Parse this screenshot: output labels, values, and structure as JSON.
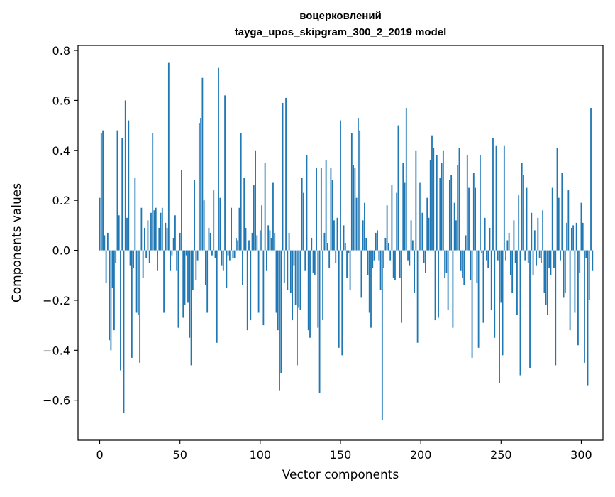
{
  "chart_data": {
    "type": "bar",
    "title": "воцерковлений",
    "subtitle": "tayga_upos_skipgram_300_2_2019 model",
    "xlabel": "Vector components",
    "ylabel": "Components values",
    "xlim": [
      -13.5,
      313.5
    ],
    "ylim": [
      -0.76,
      0.82
    ],
    "xticks": [
      0,
      50,
      100,
      150,
      200,
      250,
      300
    ],
    "xtick_labels": [
      "0",
      "50",
      "100",
      "150",
      "200",
      "250",
      "300"
    ],
    "yticks": [
      -0.6,
      -0.4,
      -0.2,
      0.0,
      0.2,
      0.4,
      0.6,
      0.8
    ],
    "ytick_labels": [
      "−0.6",
      "−0.4",
      "−0.2",
      "0.0",
      "0.2",
      "0.4",
      "0.6",
      "0.8"
    ],
    "grid": false,
    "bar_color": "#1f77b4",
    "series": [
      {
        "values": [
          0.21,
          0.47,
          0.48,
          0.06,
          -0.13,
          0.07,
          -0.36,
          -0.4,
          -0.15,
          -0.32,
          -0.05,
          0.48,
          0.14,
          -0.48,
          0.45,
          -0.65,
          0.6,
          0.13,
          0.52,
          -0.06,
          -0.43,
          -0.07,
          0.29,
          -0.25,
          -0.26,
          -0.45,
          0.17,
          -0.11,
          0.09,
          -0.03,
          0.12,
          -0.05,
          0.15,
          0.47,
          0.16,
          0.17,
          -0.08,
          0.09,
          0.15,
          0.17,
          -0.25,
          0.11,
          0.09,
          0.75,
          -0.08,
          -0.02,
          0.05,
          0.14,
          -0.08,
          -0.31,
          0.07,
          0.32,
          -0.27,
          -0.22,
          -0.02,
          -0.21,
          -0.35,
          -0.46,
          -0.16,
          0.28,
          -0.12,
          -0.04,
          0.51,
          0.53,
          0.69,
          0.2,
          -0.14,
          -0.25,
          0.09,
          0.07,
          -0.02,
          0.24,
          -0.03,
          -0.37,
          0.73,
          0.21,
          -0.06,
          -0.08,
          0.62,
          -0.15,
          -0.02,
          -0.04,
          0.17,
          -0.03,
          -0.03,
          0.05,
          0.04,
          0.17,
          0.47,
          -0.14,
          0.29,
          0.09,
          -0.32,
          0.04,
          -0.28,
          0.07,
          0.26,
          0.4,
          0.06,
          -0.25,
          0.08,
          0.18,
          -0.3,
          0.35,
          -0.08,
          0.1,
          0.08,
          0.05,
          0.27,
          0.07,
          -0.25,
          -0.32,
          -0.56,
          -0.49,
          0.59,
          -0.13,
          0.61,
          -0.16,
          0.07,
          -0.17,
          -0.28,
          -0.06,
          -0.22,
          -0.46,
          -0.23,
          -0.24,
          0.29,
          0.23,
          -0.08,
          0.38,
          -0.32,
          -0.35,
          0.05,
          -0.09,
          -0.1,
          0.33,
          -0.31,
          -0.57,
          0.33,
          -0.28,
          0.07,
          0.36,
          0.03,
          -0.07,
          0.33,
          0.28,
          0.12,
          -0.05,
          0.13,
          -0.39,
          0.52,
          -0.42,
          0.1,
          0.03,
          -0.11,
          -0.01,
          -0.16,
          0.47,
          0.34,
          0.33,
          0.21,
          0.53,
          0.48,
          -0.19,
          0.12,
          0.19,
          0.05,
          -0.1,
          -0.25,
          -0.31,
          -0.07,
          -0.04,
          0.07,
          0.08,
          -0.04,
          -0.16,
          -0.68,
          -0.07,
          0.05,
          0.18,
          0.03,
          -0.04,
          0.26,
          -0.11,
          -0.12,
          0.23,
          0.5,
          -0.11,
          -0.29,
          0.35,
          0.27,
          0.57,
          -0.04,
          -0.06,
          0.12,
          0.04,
          -0.17,
          0.4,
          -0.37,
          0.27,
          0.27,
          0.15,
          -0.05,
          -0.09,
          0.21,
          0.13,
          0.36,
          0.46,
          0.41,
          -0.28,
          0.38,
          -0.27,
          0.29,
          0.35,
          0.4,
          -0.11,
          -0.09,
          -0.24,
          0.28,
          0.3,
          -0.31,
          0.19,
          0.12,
          0.34,
          0.41,
          -0.08,
          -0.11,
          -0.14,
          0.06,
          0.38,
          0.25,
          -0.12,
          -0.43,
          0.31,
          0.25,
          -0.13,
          -0.39,
          0.38,
          -0.01,
          -0.29,
          0.13,
          -0.04,
          -0.07,
          0.09,
          -0.24,
          0.45,
          -0.35,
          0.42,
          -0.04,
          -0.53,
          -0.21,
          -0.42,
          0.42,
          -0.04,
          0.04,
          0.07,
          -0.1,
          -0.17,
          0.12,
          -0.05,
          -0.26,
          0.22,
          -0.5,
          0.35,
          0.3,
          -0.04,
          0.25,
          -0.05,
          -0.47,
          0.15,
          -0.1,
          0.08,
          -0.06,
          0.13,
          -0.03,
          -0.05,
          0.16,
          -0.17,
          -0.22,
          -0.26,
          -0.07,
          -0.1,
          0.25,
          -0.07,
          -0.46,
          0.41,
          0.21,
          -0.04,
          0.31,
          -0.19,
          -0.17,
          0.11,
          0.24,
          -0.32,
          0.09,
          0.1,
          -0.25,
          0.11,
          -0.38,
          -0.09,
          0.19,
          0.11,
          -0.45,
          -0.03,
          -0.54,
          -0.2,
          0.57,
          -0.08
        ]
      }
    ]
  }
}
